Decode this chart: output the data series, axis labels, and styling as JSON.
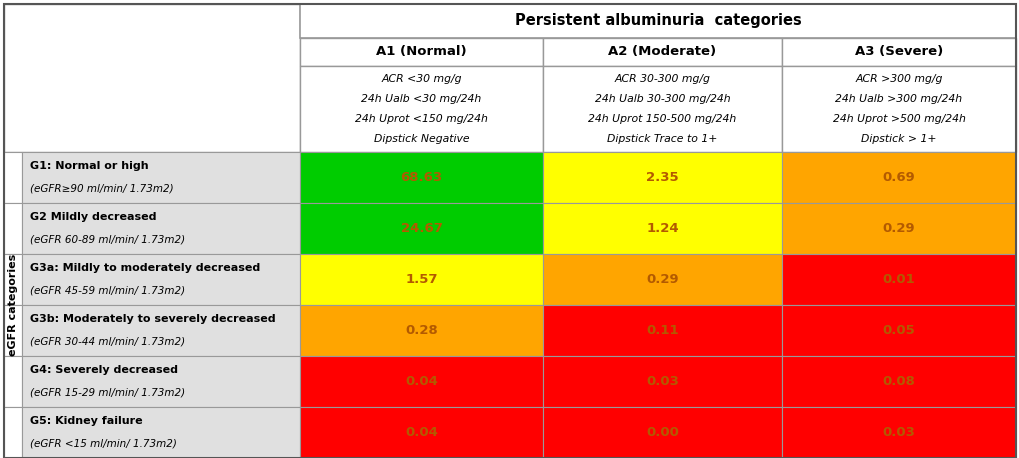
{
  "title_albuminuria": "Persistent albuminuria  categories",
  "col_headers": [
    "A1 (Normal)",
    "A2 (Moderate)",
    "A3 (Severe)"
  ],
  "col_subheaders": [
    [
      "ACR <30 mg/g",
      "24h Ualb <30 mg/24h",
      "24h Uprot <150 mg/24h",
      "Dipstick Negative"
    ],
    [
      "ACR 30-300 mg/g",
      "24h Ualb 30-300 mg/24h",
      "24h Uprot 150-500 mg/24h",
      "Dipstick Trace to 1+"
    ],
    [
      "ACR >300 mg/g",
      "24h Ualb >300 mg/24h",
      "24h Uprot >500 mg/24h",
      "Dipstick > 1+"
    ]
  ],
  "row_headers": [
    [
      "G1: Normal or high",
      "(eGFR≥90 ml/min/ 1.73m2)"
    ],
    [
      "G2 Mildly decreased",
      "(eGFR 60-89 ml/min/ 1.73m2)"
    ],
    [
      "G3a: Mildly to moderately decreased",
      "(eGFR 45-59 ml/min/ 1.73m2)"
    ],
    [
      "G3b: Moderately to severely decreased",
      "(eGFR 30-44 ml/min/ 1.73m2)"
    ],
    [
      "G4: Severely decreased",
      "(eGFR 15-29 ml/min/ 1.73m2)"
    ],
    [
      "G5: Kidney failure",
      "(eGFR <15 ml/min/ 1.73m2)"
    ]
  ],
  "egfr_label": "eGFR categories",
  "values": [
    [
      "68.63",
      "2.35",
      "0.69"
    ],
    [
      "24.67",
      "1.24",
      "0.29"
    ],
    [
      "1.57",
      "0.29",
      "0.01"
    ],
    [
      "0.28",
      "0.11",
      "0.05"
    ],
    [
      "0.04",
      "0.03",
      "0.08"
    ],
    [
      "0.04",
      "0.00",
      "0.03"
    ]
  ],
  "cell_colors": [
    [
      "#00cc00",
      "#ffff00",
      "#ffa500"
    ],
    [
      "#00cc00",
      "#ffff00",
      "#ffa500"
    ],
    [
      "#ffff00",
      "#ffa500",
      "#ff0000"
    ],
    [
      "#ffa500",
      "#ff0000",
      "#ff0000"
    ],
    [
      "#ff0000",
      "#ff0000",
      "#ff0000"
    ],
    [
      "#ff0000",
      "#ff0000",
      "#ff0000"
    ]
  ],
  "bg_color": "#ffffff",
  "row_label_bg": "#e0e0e0",
  "border_color": "#999999",
  "value_text_color": "#b35a00",
  "value_fontsize": 9.5,
  "header_fontsize": 9.5,
  "subheader_fontsize": 7.8,
  "row_label_fontsize": 8.0,
  "egfr_fontsize": 8.0
}
